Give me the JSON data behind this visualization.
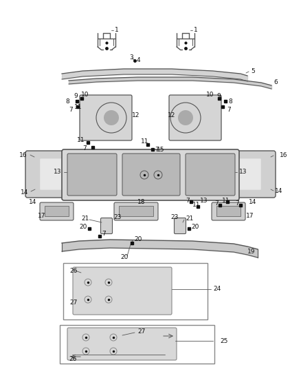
{
  "bg_color": "#ffffff",
  "line_color": "#666666",
  "dark_line": "#333333",
  "text_color": "#111111",
  "fig_width": 4.38,
  "fig_height": 5.33,
  "dpi": 100,
  "part_fill": "#d8d8d8",
  "part_edge": "#555555",
  "label_fs": 6.5
}
